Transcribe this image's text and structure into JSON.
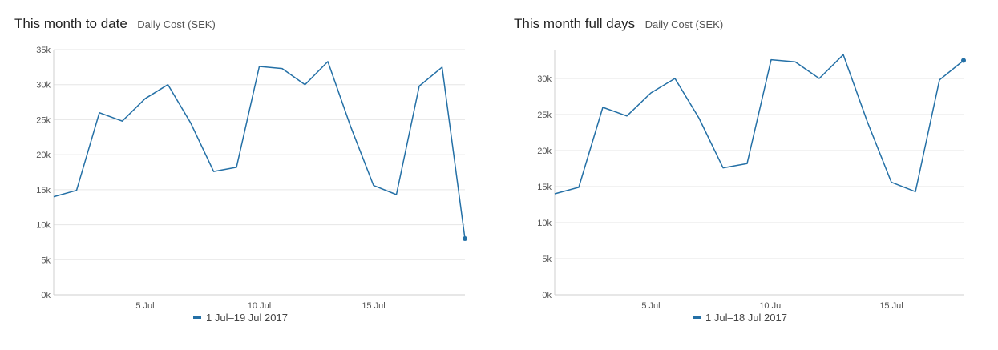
{
  "colors": {
    "series": "#2470a6",
    "grid": "#e6e6e6",
    "axis": "#cfcfcf"
  },
  "chart_data": [
    {
      "type": "line",
      "title": "This month to date",
      "subtitle": "Daily Cost (SEK)",
      "x": [
        1,
        2,
        3,
        4,
        5,
        6,
        7,
        8,
        9,
        10,
        11,
        12,
        13,
        14,
        15,
        16,
        17,
        18,
        19
      ],
      "xlim": [
        1,
        19
      ],
      "x_ticks": [
        {
          "value": 5,
          "label": "5 Jul"
        },
        {
          "value": 10,
          "label": "10 Jul"
        },
        {
          "value": 15,
          "label": "15 Jul"
        }
      ],
      "ylim": [
        0,
        35000
      ],
      "y_ticks": [
        {
          "value": 0,
          "label": "0k"
        },
        {
          "value": 5000,
          "label": "5k"
        },
        {
          "value": 10000,
          "label": "10k"
        },
        {
          "value": 15000,
          "label": "15k"
        },
        {
          "value": 20000,
          "label": "20k"
        },
        {
          "value": 25000,
          "label": "25k"
        },
        {
          "value": 30000,
          "label": "30k"
        },
        {
          "value": 35000,
          "label": "35k"
        }
      ],
      "grid": true,
      "legend": "bottom-center",
      "series": [
        {
          "name": "1 Jul–19 Jul 2017",
          "values": [
            14000,
            14900,
            26000,
            24800,
            28000,
            30000,
            24500,
            17600,
            18200,
            32600,
            32300,
            30000,
            33300,
            24000,
            15600,
            14300,
            29800,
            32500,
            8000
          ]
        }
      ]
    },
    {
      "type": "line",
      "title": "This month full days",
      "subtitle": "Daily Cost (SEK)",
      "x": [
        1,
        2,
        3,
        4,
        5,
        6,
        7,
        8,
        9,
        10,
        11,
        12,
        13,
        14,
        15,
        16,
        17,
        18
      ],
      "xlim": [
        1,
        18
      ],
      "x_ticks": [
        {
          "value": 5,
          "label": "5 Jul"
        },
        {
          "value": 10,
          "label": "10 Jul"
        },
        {
          "value": 15,
          "label": "15 Jul"
        }
      ],
      "ylim": [
        0,
        34000
      ],
      "y_ticks": [
        {
          "value": 0,
          "label": "0k"
        },
        {
          "value": 5000,
          "label": "5k"
        },
        {
          "value": 10000,
          "label": "10k"
        },
        {
          "value": 15000,
          "label": "15k"
        },
        {
          "value": 20000,
          "label": "20k"
        },
        {
          "value": 25000,
          "label": "25k"
        },
        {
          "value": 30000,
          "label": "30k"
        }
      ],
      "grid": true,
      "legend": "bottom-center",
      "series": [
        {
          "name": "1 Jul–18 Jul 2017",
          "values": [
            14000,
            14900,
            26000,
            24800,
            28000,
            30000,
            24500,
            17600,
            18200,
            32600,
            32300,
            30000,
            33300,
            24000,
            15600,
            14300,
            29800,
            32500
          ]
        }
      ]
    }
  ]
}
